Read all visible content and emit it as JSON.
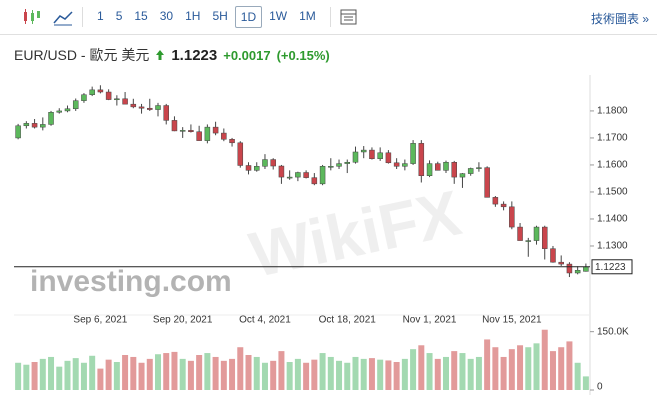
{
  "toolbar": {
    "intervals": [
      "1",
      "5",
      "15",
      "30",
      "1H",
      "5H",
      "1D",
      "1W",
      "1M"
    ],
    "selected": "1D",
    "link": "技術圖表 »"
  },
  "header": {
    "title": "EUR/USD - 歐元 美元",
    "price": "1.1223",
    "change": "+0.0017",
    "change_pct": "(+0.15%)"
  },
  "watermarks": [
    "investing.com",
    "WikiFX"
  ],
  "chart_data": {
    "type": "candlestick",
    "categories": [
      null,
      null,
      null,
      null,
      null,
      null,
      null,
      null,
      null,
      null,
      "Sep 6, 2021",
      null,
      null,
      null,
      null,
      null,
      null,
      null,
      null,
      null,
      "Sep 20, 2021",
      null,
      null,
      null,
      null,
      null,
      null,
      null,
      null,
      null,
      "Oct 4, 2021",
      null,
      null,
      null,
      null,
      null,
      null,
      null,
      null,
      null,
      "Oct 18, 2021",
      null,
      null,
      null,
      null,
      null,
      null,
      null,
      null,
      null,
      "Nov 1, 2021",
      null,
      null,
      null,
      null,
      null,
      null,
      null,
      null,
      null,
      "Nov 15, 2021",
      null,
      null,
      null,
      null,
      null,
      null,
      null,
      null,
      null
    ],
    "open": [
      1.17,
      1.1745,
      1.1754,
      1.174,
      1.175,
      1.1795,
      1.18,
      1.1808,
      1.1838,
      1.186,
      1.1878,
      1.187,
      1.1842,
      1.1845,
      1.1825,
      1.1815,
      1.181,
      1.1805,
      1.182,
      1.1765,
      1.1726,
      1.1728,
      1.1723,
      1.169,
      1.174,
      1.1718,
      1.1695,
      1.1682,
      1.1598,
      1.158,
      1.1595,
      1.162,
      1.1596,
      1.1555,
      1.1555,
      1.1572,
      1.1553,
      1.153,
      1.1595,
      1.1595,
      1.1605,
      1.161,
      1.1648,
      1.1655,
      1.1623,
      1.1645,
      1.1608,
      1.1595,
      1.1605,
      1.168,
      1.156,
      1.1605,
      1.158,
      1.161,
      1.1555,
      1.1568,
      1.1587,
      1.159,
      1.148,
      1.1455,
      1.1445,
      1.137,
      1.132,
      1.132,
      1.137,
      1.129,
      1.124,
      1.1233,
      1.12,
      1.1206
    ],
    "high": [
      1.1752,
      1.1762,
      1.177,
      1.1776,
      1.18,
      1.181,
      1.182,
      1.1846,
      1.1866,
      1.189,
      1.1895,
      1.188,
      1.1858,
      1.187,
      1.1845,
      1.1826,
      1.1845,
      1.183,
      1.1826,
      1.178,
      1.174,
      1.175,
      1.1745,
      1.175,
      1.176,
      1.1735,
      1.17,
      1.1688,
      1.161,
      1.161,
      1.164,
      1.1625,
      1.16,
      1.158,
      1.1575,
      1.158,
      1.157,
      1.16,
      1.1625,
      1.162,
      1.162,
      1.1668,
      1.167,
      1.1665,
      1.1665,
      1.1655,
      1.1625,
      1.162,
      1.1692,
      1.1692,
      1.1617,
      1.1612,
      1.1616,
      1.1615,
      1.157,
      1.159,
      1.161,
      1.1595,
      1.1485,
      1.1465,
      1.1465,
      1.1385,
      1.133,
      1.1375,
      1.1375,
      1.13,
      1.1265,
      1.124,
      1.1225,
      1.1235
    ],
    "low": [
      1.1695,
      1.1735,
      1.1735,
      1.1728,
      1.1745,
      1.179,
      1.1795,
      1.18,
      1.183,
      1.1855,
      1.1865,
      1.184,
      1.182,
      1.183,
      1.181,
      1.179,
      1.18,
      1.178,
      1.175,
      1.1725,
      1.17,
      1.172,
      1.169,
      1.168,
      1.171,
      1.1688,
      1.1668,
      1.159,
      1.1565,
      1.1575,
      1.1585,
      1.1583,
      1.153,
      1.1545,
      1.154,
      1.155,
      1.1525,
      1.1525,
      1.158,
      1.1585,
      1.157,
      1.1605,
      1.1625,
      1.162,
      1.1615,
      1.1605,
      1.1585,
      1.158,
      1.16,
      1.1535,
      1.1555,
      1.158,
      1.157,
      1.153,
      1.1515,
      1.156,
      1.1575,
      1.148,
      1.1445,
      1.1432,
      1.1362,
      1.132,
      1.126,
      1.1305,
      1.125,
      1.1238,
      1.1226,
      1.1185,
      1.1195,
      1.1205
    ],
    "close": [
      1.1745,
      1.1754,
      1.174,
      1.175,
      1.1795,
      1.18,
      1.1808,
      1.1838,
      1.186,
      1.1878,
      1.187,
      1.1842,
      1.1845,
      1.1825,
      1.1815,
      1.181,
      1.1805,
      1.182,
      1.1765,
      1.1726,
      1.1728,
      1.1723,
      1.169,
      1.174,
      1.1718,
      1.1695,
      1.1682,
      1.1598,
      1.158,
      1.1595,
      1.162,
      1.1596,
      1.1555,
      1.1555,
      1.1572,
      1.1553,
      1.153,
      1.1595,
      1.1595,
      1.1605,
      1.161,
      1.1648,
      1.1655,
      1.1623,
      1.1645,
      1.1608,
      1.1595,
      1.1605,
      1.168,
      1.156,
      1.1605,
      1.158,
      1.161,
      1.1555,
      1.1568,
      1.1587,
      1.159,
      1.148,
      1.1455,
      1.1445,
      1.137,
      1.132,
      1.132,
      1.137,
      1.129,
      1.124,
      1.1233,
      1.12,
      1.121,
      1.1223
    ],
    "volume": [
      70000,
      65000,
      72000,
      80000,
      85000,
      60000,
      75000,
      82000,
      70000,
      88000,
      55000,
      78000,
      72000,
      90000,
      85000,
      70000,
      80000,
      92000,
      95000,
      98000,
      80000,
      75000,
      90000,
      95000,
      85000,
      75000,
      80000,
      110000,
      90000,
      85000,
      70000,
      75000,
      100000,
      72000,
      80000,
      70000,
      78000,
      95000,
      85000,
      75000,
      70000,
      85000,
      80000,
      82000,
      78000,
      76000,
      72000,
      80000,
      105000,
      115000,
      95000,
      80000,
      85000,
      100000,
      95000,
      80000,
      85000,
      130000,
      110000,
      85000,
      105000,
      115000,
      110000,
      120000,
      155000,
      100000,
      110000,
      125000,
      70000,
      35000
    ],
    "up_color": "#5cb85c",
    "down_color": "#c9454c",
    "volume_up_color": "#a3d9b1",
    "volume_down_color": "#e29a9a",
    "ylim": [
      1.11,
      1.1933
    ],
    "yticks": [
      {
        "value": 1.18,
        "label": "1.1800"
      },
      {
        "value": 1.17,
        "label": "1.1700"
      },
      {
        "value": 1.16,
        "label": "1.1600"
      },
      {
        "value": 1.15,
        "label": "1.1500"
      },
      {
        "value": 1.14,
        "label": "1.1400"
      },
      {
        "value": 1.13,
        "label": "1.1300"
      }
    ],
    "last_price": {
      "value": 1.1223,
      "label": "1.1223"
    },
    "volume_ylim": [
      0,
      180000
    ],
    "volume_ticks": [
      {
        "value": 150000,
        "label": "150.0K"
      },
      0
    ],
    "grid": false
  }
}
